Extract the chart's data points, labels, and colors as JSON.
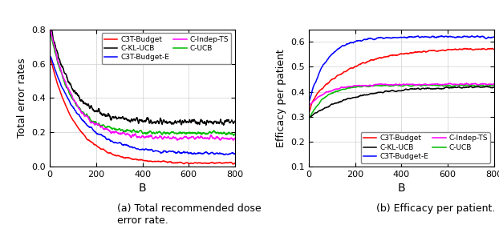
{
  "title_left": "(a) Total recommended dose\nerror rate.",
  "title_right": "(b) Efficacy per patient.",
  "xlabel": "B",
  "ylabel_left": "Total error rates",
  "ylabel_right": "Efficacy per patient",
  "xlim": [
    0,
    800
  ],
  "ylim_left": [
    0,
    0.8
  ],
  "ylim_right": [
    0.1,
    0.65
  ],
  "yticks_left": [
    0.0,
    0.2,
    0.4,
    0.6,
    0.8
  ],
  "yticks_right": [
    0.1,
    0.2,
    0.3,
    0.4,
    0.5,
    0.6
  ],
  "xticks": [
    0,
    200,
    400,
    600,
    800
  ],
  "colors": {
    "C3T-Budget": "#ff0000",
    "C3T-Budget-E": "#0000ff",
    "C-UCB": "#00bb00",
    "C-KL-UCB": "#000000",
    "C-Indep-TS": "#ff00ff"
  },
  "seed": 42,
  "n_points": 800
}
